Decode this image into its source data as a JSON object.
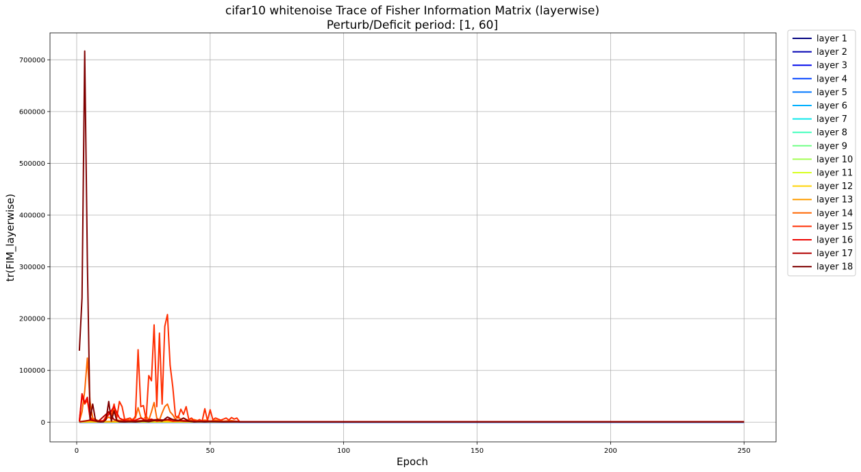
{
  "chart_data": {
    "type": "line",
    "title": "cifar10 whitenoise Trace of Fisher Information Matrix (layerwise)",
    "subtitle": "Perturb/Deficit period: [1, 60]",
    "xlabel": "Epoch",
    "ylabel": "tr(FIM_layerwise)",
    "xlim": [
      -10,
      262
    ],
    "ylim": [
      -38000,
      752000
    ],
    "xticks": [
      0,
      50,
      100,
      150,
      200,
      250
    ],
    "yticks": [
      0,
      100000,
      200000,
      300000,
      400000,
      500000,
      600000,
      700000
    ],
    "grid": true,
    "legend_position": "outside-top-right",
    "series": [
      {
        "name": "layer 1",
        "color": "#00007f",
        "points": [
          [
            1,
            50
          ],
          [
            61,
            50
          ],
          [
            250,
            50
          ]
        ]
      },
      {
        "name": "layer 2",
        "color": "#0000b2",
        "points": [
          [
            1,
            80
          ],
          [
            61,
            80
          ],
          [
            250,
            80
          ]
        ]
      },
      {
        "name": "layer 3",
        "color": "#0008ec",
        "points": [
          [
            1,
            120
          ],
          [
            61,
            120
          ],
          [
            250,
            120
          ]
        ]
      },
      {
        "name": "layer 4",
        "color": "#0040ff",
        "points": [
          [
            1,
            150
          ],
          [
            61,
            150
          ],
          [
            250,
            150
          ]
        ]
      },
      {
        "name": "layer 5",
        "color": "#0078ff",
        "points": [
          [
            1,
            200
          ],
          [
            61,
            200
          ],
          [
            250,
            200
          ]
        ]
      },
      {
        "name": "layer 6",
        "color": "#00b0ff",
        "points": [
          [
            1,
            250
          ],
          [
            61,
            250
          ],
          [
            250,
            250
          ]
        ]
      },
      {
        "name": "layer 7",
        "color": "#0ce8ea",
        "points": [
          [
            1,
            300
          ],
          [
            61,
            300
          ],
          [
            250,
            300
          ]
        ]
      },
      {
        "name": "layer 8",
        "color": "#3dffba",
        "points": [
          [
            1,
            350
          ],
          [
            61,
            350
          ],
          [
            250,
            350
          ]
        ]
      },
      {
        "name": "layer 9",
        "color": "#70ff86",
        "points": [
          [
            1,
            400
          ],
          [
            61,
            400
          ],
          [
            250,
            400
          ]
        ]
      },
      {
        "name": "layer 10",
        "color": "#a3ff53",
        "points": [
          [
            1,
            450
          ],
          [
            61,
            450
          ],
          [
            250,
            450
          ]
        ]
      },
      {
        "name": "layer 11",
        "color": "#d7ff1e",
        "points": [
          [
            1,
            500
          ],
          [
            61,
            500
          ],
          [
            250,
            500
          ]
        ]
      },
      {
        "name": "layer 12",
        "color": "#ffd200",
        "points": [
          [
            1,
            600
          ],
          [
            30,
            1200
          ],
          [
            61,
            600
          ],
          [
            250,
            600
          ]
        ]
      },
      {
        "name": "layer 13",
        "color": "#ff9d00",
        "points": [
          [
            1,
            800
          ],
          [
            3,
            2500
          ],
          [
            5,
            3000
          ],
          [
            10,
            1200
          ],
          [
            20,
            2500
          ],
          [
            30,
            3500
          ],
          [
            40,
            1500
          ],
          [
            61,
            800
          ],
          [
            250,
            800
          ]
        ]
      },
      {
        "name": "layer 14",
        "color": "#ff6600",
        "points": [
          [
            1,
            1000
          ],
          [
            2,
            20000
          ],
          [
            3,
            60000
          ],
          [
            4,
            124000
          ],
          [
            5,
            40000
          ],
          [
            6,
            8000
          ],
          [
            8,
            3000
          ],
          [
            10,
            2000
          ],
          [
            12,
            10000
          ],
          [
            13,
            6000
          ],
          [
            14,
            30000
          ],
          [
            15,
            5000
          ],
          [
            16,
            3000
          ],
          [
            18,
            6000
          ],
          [
            20,
            4000
          ],
          [
            22,
            8000
          ],
          [
            23,
            28000
          ],
          [
            24,
            10000
          ],
          [
            25,
            5000
          ],
          [
            26,
            12000
          ],
          [
            27,
            4000
          ],
          [
            28,
            20000
          ],
          [
            29,
            38000
          ],
          [
            30,
            8000
          ],
          [
            31,
            4000
          ],
          [
            32,
            18000
          ],
          [
            33,
            30000
          ],
          [
            34,
            35000
          ],
          [
            35,
            20000
          ],
          [
            36,
            14000
          ],
          [
            37,
            6000
          ],
          [
            38,
            12000
          ],
          [
            39,
            4000
          ],
          [
            40,
            8000
          ],
          [
            42,
            3000
          ],
          [
            44,
            5000
          ],
          [
            46,
            2000
          ],
          [
            48,
            4000
          ],
          [
            50,
            2000
          ],
          [
            52,
            4000
          ],
          [
            55,
            2000
          ],
          [
            58,
            3000
          ],
          [
            60,
            1500
          ],
          [
            61,
            800
          ],
          [
            250,
            800
          ]
        ]
      },
      {
        "name": "layer 15",
        "color": "#ff2d00",
        "points": [
          [
            1,
            2000
          ],
          [
            2,
            50000
          ],
          [
            3,
            35000
          ],
          [
            4,
            42000
          ],
          [
            5,
            10000
          ],
          [
            6,
            5000
          ],
          [
            8,
            2000
          ],
          [
            10,
            3000
          ],
          [
            12,
            20000
          ],
          [
            13,
            15000
          ],
          [
            14,
            35000
          ],
          [
            15,
            8000
          ],
          [
            16,
            40000
          ],
          [
            17,
            30000
          ],
          [
            18,
            5000
          ],
          [
            20,
            8000
          ],
          [
            21,
            3000
          ],
          [
            22,
            12000
          ],
          [
            23,
            140000
          ],
          [
            24,
            30000
          ],
          [
            25,
            32000
          ],
          [
            26,
            5000
          ],
          [
            27,
            90000
          ],
          [
            28,
            80000
          ],
          [
            29,
            188000
          ],
          [
            30,
            30000
          ],
          [
            31,
            172000
          ],
          [
            32,
            35000
          ],
          [
            33,
            185000
          ],
          [
            34,
            208000
          ],
          [
            35,
            110000
          ],
          [
            36,
            68000
          ],
          [
            37,
            12000
          ],
          [
            38,
            8000
          ],
          [
            39,
            25000
          ],
          [
            40,
            15000
          ],
          [
            41,
            30000
          ],
          [
            42,
            5000
          ],
          [
            43,
            8000
          ],
          [
            44,
            3000
          ],
          [
            45,
            2000
          ],
          [
            46,
            5000
          ],
          [
            47,
            2000
          ],
          [
            48,
            26000
          ],
          [
            49,
            3000
          ],
          [
            50,
            24000
          ],
          [
            51,
            5000
          ],
          [
            52,
            8000
          ],
          [
            53,
            6000
          ],
          [
            54,
            4000
          ],
          [
            55,
            6000
          ],
          [
            56,
            8000
          ],
          [
            57,
            4000
          ],
          [
            58,
            9000
          ],
          [
            59,
            6000
          ],
          [
            60,
            8000
          ],
          [
            61,
            1000
          ],
          [
            250,
            1000
          ]
        ]
      },
      {
        "name": "layer 16",
        "color": "#ed0400",
        "points": [
          [
            1,
            1500
          ],
          [
            2,
            55000
          ],
          [
            3,
            38000
          ],
          [
            4,
            48000
          ],
          [
            5,
            8000
          ],
          [
            6,
            4000
          ],
          [
            8,
            1500
          ],
          [
            10,
            2000
          ],
          [
            12,
            15000
          ],
          [
            14,
            30000
          ],
          [
            16,
            8000
          ],
          [
            18,
            3000
          ],
          [
            20,
            2000
          ],
          [
            22,
            4000
          ],
          [
            24,
            8000
          ],
          [
            26,
            3000
          ],
          [
            28,
            6000
          ],
          [
            30,
            2000
          ],
          [
            34,
            5000
          ],
          [
            36,
            2000
          ],
          [
            40,
            3000
          ],
          [
            45,
            1500
          ],
          [
            50,
            2000
          ],
          [
            55,
            1000
          ],
          [
            60,
            1500
          ],
          [
            61,
            900
          ],
          [
            250,
            900
          ]
        ]
      },
      {
        "name": "layer 17",
        "color": "#b20000",
        "points": [
          [
            1,
            800
          ],
          [
            3,
            2000
          ],
          [
            5,
            4000
          ],
          [
            8,
            1000
          ],
          [
            12,
            20000
          ],
          [
            14,
            5000
          ],
          [
            16,
            2000
          ],
          [
            20,
            1000
          ],
          [
            25,
            3000
          ],
          [
            30,
            5000
          ],
          [
            33,
            4000
          ],
          [
            35,
            6000
          ],
          [
            40,
            2000
          ],
          [
            45,
            1000
          ],
          [
            50,
            1500
          ],
          [
            55,
            800
          ],
          [
            60,
            1000
          ],
          [
            61,
            700
          ],
          [
            250,
            700
          ]
        ]
      },
      {
        "name": "layer 18",
        "color": "#7f0000",
        "points": [
          [
            1,
            138000
          ],
          [
            2,
            240000
          ],
          [
            3,
            717000
          ],
          [
            4,
            310000
          ],
          [
            5,
            5000
          ],
          [
            6,
            35000
          ],
          [
            7,
            5000
          ],
          [
            8,
            1000
          ],
          [
            9,
            500
          ],
          [
            10,
            800
          ],
          [
            11,
            5000
          ],
          [
            12,
            40000
          ],
          [
            13,
            2000
          ],
          [
            14,
            22000
          ],
          [
            15,
            3000
          ],
          [
            16,
            800
          ],
          [
            18,
            500
          ],
          [
            20,
            1000
          ],
          [
            22,
            500
          ],
          [
            25,
            2000
          ],
          [
            27,
            1000
          ],
          [
            30,
            4000
          ],
          [
            32,
            2000
          ],
          [
            34,
            10000
          ],
          [
            36,
            5000
          ],
          [
            38,
            3000
          ],
          [
            40,
            8000
          ],
          [
            42,
            2000
          ],
          [
            44,
            500
          ],
          [
            46,
            1000
          ],
          [
            48,
            500
          ],
          [
            50,
            1000
          ],
          [
            55,
            500
          ],
          [
            60,
            800
          ],
          [
            61,
            500
          ],
          [
            250,
            500
          ]
        ]
      }
    ]
  }
}
